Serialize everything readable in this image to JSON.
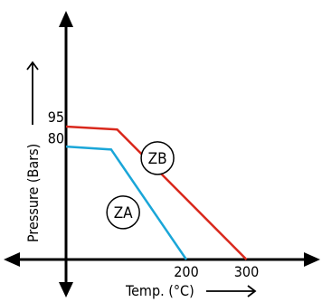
{
  "chart_data": {
    "type": "line",
    "xlabel": "Temp. (°C)",
    "ylabel": "Pressure (Bars)",
    "x_ticks": [
      {
        "value": 200,
        "label": "200"
      },
      {
        "value": 300,
        "label": "300"
      }
    ],
    "y_ticks": [
      {
        "value": 80,
        "label": "80"
      },
      {
        "value": 95,
        "label": "95"
      }
    ],
    "xlim": [
      -25,
      320
    ],
    "ylim": [
      -15,
      138
    ],
    "series": [
      {
        "name": "ZB",
        "color": "#d9281c",
        "x": [
          0,
          85,
          300
        ],
        "y": [
          93,
          91,
          0
        ]
      },
      {
        "name": "ZA",
        "color": "#1aa6d8",
        "x": [
          0,
          75,
          200
        ],
        "y": [
          79,
          77,
          0
        ]
      }
    ],
    "annotations": [
      {
        "text": "ZB",
        "x": 152,
        "y": 71
      },
      {
        "text": "ZA",
        "x": 95,
        "y": 33
      }
    ]
  }
}
